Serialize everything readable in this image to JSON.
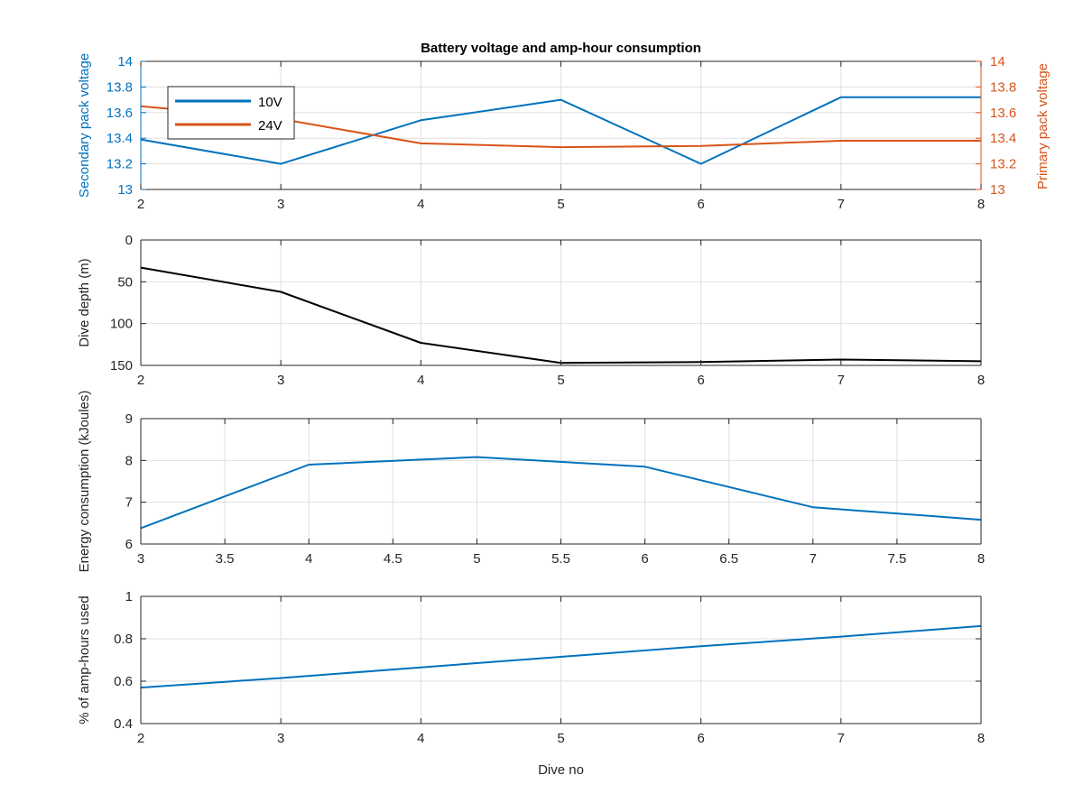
{
  "colors": {
    "blue": "#0072BD",
    "orange": "#D95319",
    "black": "#000000",
    "axis": "#262626",
    "grid": "#dfdfdf"
  },
  "chart_data": [
    {
      "type": "line",
      "title": "Battery voltage and amp-hour consumption",
      "xlabel": "",
      "xlim": [
        2,
        8
      ],
      "x_ticks": [
        "2",
        "3",
        "4",
        "5",
        "6",
        "7",
        "8"
      ],
      "ylabel_left": "Secondary pack voltage",
      "ylabel_right": "Primary pack voltage",
      "ylim_left": [
        13,
        14
      ],
      "ylim_right": [
        13,
        14
      ],
      "y_ticks_left": [
        "13",
        "13.2",
        "13.4",
        "13.6",
        "13.8",
        "14"
      ],
      "y_ticks_right": [
        "13",
        "13.2",
        "13.4",
        "13.6",
        "13.8",
        "14"
      ],
      "grid": true,
      "legend_position": "top-left",
      "series": [
        {
          "name": "10V",
          "axis": "left",
          "color": "blue",
          "x": [
            2,
            3,
            4,
            5,
            6,
            7,
            8
          ],
          "y": [
            13.39,
            13.2,
            13.54,
            13.7,
            13.2,
            13.72,
            13.72
          ]
        },
        {
          "name": "24V",
          "axis": "right",
          "color": "orange",
          "x": [
            2,
            3,
            4,
            5,
            6,
            7,
            8
          ],
          "y": [
            13.65,
            13.55,
            13.36,
            13.33,
            13.34,
            13.38,
            13.38
          ]
        }
      ]
    },
    {
      "type": "line",
      "title": "",
      "xlabel": "",
      "xlim": [
        2,
        8
      ],
      "x_ticks": [
        "2",
        "3",
        "4",
        "5",
        "6",
        "7",
        "8"
      ],
      "ylabel": "Dive depth (m)",
      "ylim": [
        0,
        150
      ],
      "y_reversed": true,
      "y_ticks": [
        "0",
        "50",
        "100",
        "150"
      ],
      "grid": true,
      "series": [
        {
          "color": "black",
          "x": [
            2,
            3,
            4,
            5,
            6,
            7,
            8
          ],
          "y": [
            33,
            62,
            123,
            147,
            146,
            143,
            145
          ]
        }
      ]
    },
    {
      "type": "line",
      "title": "",
      "xlabel": "",
      "xlim": [
        3,
        8
      ],
      "x_ticks": [
        "3",
        "3.5",
        "4",
        "4.5",
        "5",
        "5.5",
        "6",
        "6.5",
        "7",
        "7.5",
        "8"
      ],
      "ylabel": "Energy consumption (kJoules)",
      "ylim": [
        6,
        9
      ],
      "y_ticks": [
        "6",
        "7",
        "8",
        "9"
      ],
      "grid": true,
      "series": [
        {
          "color": "blue",
          "x": [
            3,
            4,
            5,
            6,
            7,
            8
          ],
          "y": [
            6.38,
            7.9,
            8.08,
            7.85,
            6.88,
            6.58
          ]
        }
      ]
    },
    {
      "type": "line",
      "title": "",
      "xlabel": "Dive no",
      "xlim": [
        2,
        8
      ],
      "x_ticks": [
        "2",
        "3",
        "4",
        "5",
        "6",
        "7",
        "8"
      ],
      "ylabel": "% of amp-hours used",
      "ylim": [
        0.4,
        1
      ],
      "y_ticks": [
        "0.4",
        "0.6",
        "0.8",
        "1"
      ],
      "grid": true,
      "series": [
        {
          "color": "blue",
          "x": [
            2,
            3,
            4,
            5,
            6,
            7,
            8
          ],
          "y": [
            0.57,
            0.615,
            0.665,
            0.715,
            0.765,
            0.81,
            0.86
          ]
        }
      ]
    }
  ]
}
